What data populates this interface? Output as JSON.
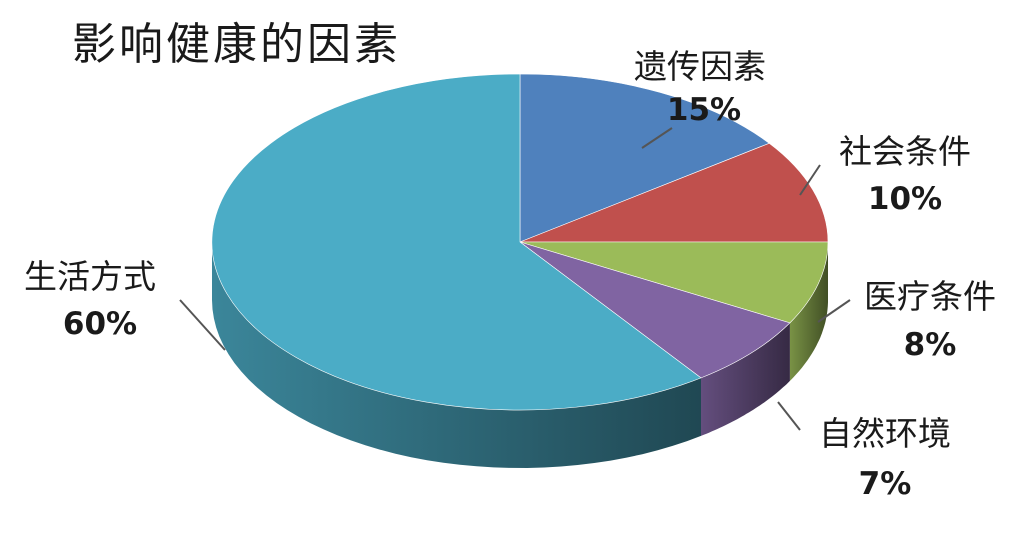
{
  "chart_data": {
    "type": "pie",
    "style": "3d",
    "title": "影响健康的因素",
    "slices": [
      {
        "label": "遗传因素",
        "value": 15,
        "value_label": "15%",
        "color": "#4f81bd"
      },
      {
        "label": "社会条件",
        "value": 10,
        "value_label": "10%",
        "color": "#c0504d"
      },
      {
        "label": "医疗条件",
        "value": 8,
        "value_label": "8%",
        "color": "#9bbb59"
      },
      {
        "label": "自然环境",
        "value": 7,
        "value_label": "7%",
        "color": "#8064a2"
      },
      {
        "label": "生活方式",
        "value": 60,
        "value_label": "60%",
        "color": "#4bacc6"
      }
    ],
    "legend": "none",
    "data_labels": "outside-with-leader-lines"
  }
}
